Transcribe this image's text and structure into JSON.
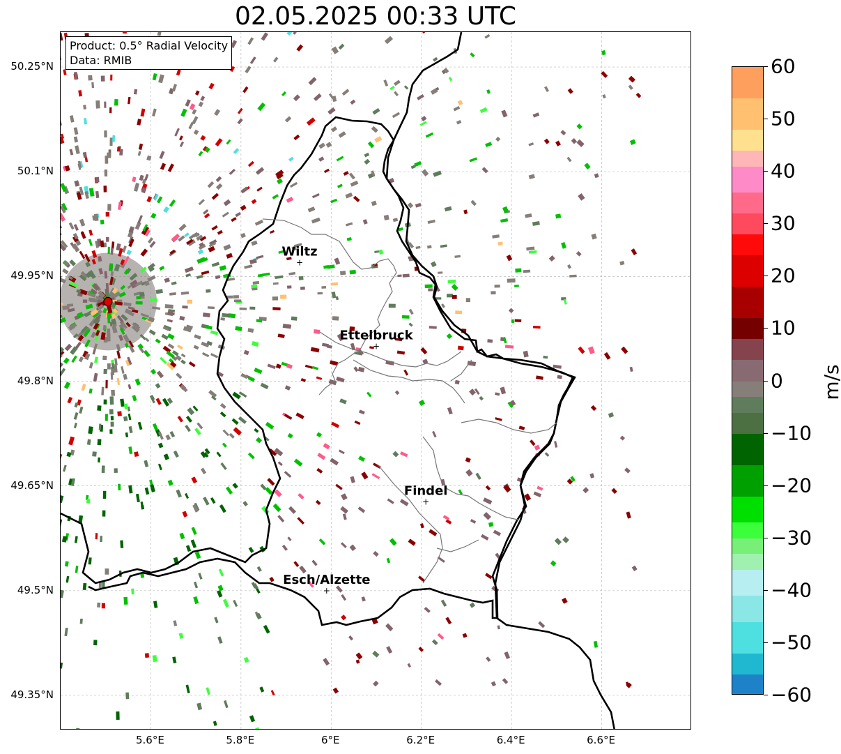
{
  "title": "02.05.2025 00:33 UTC",
  "info": {
    "product": "Product: 0.5° Radial Velocity",
    "data_source": "Data: RMIB"
  },
  "lat_ticks": [
    {
      "value": 50.25,
      "label": "50.25°N"
    },
    {
      "value": 50.1,
      "label": "50.1°N"
    },
    {
      "value": 49.95,
      "label": "49.95°N"
    },
    {
      "value": 49.8,
      "label": "49.8°N"
    },
    {
      "value": 49.65,
      "label": "49.65°N"
    },
    {
      "value": 49.5,
      "label": "49.5°N"
    },
    {
      "value": 49.35,
      "label": "49.35°N"
    }
  ],
  "lon_ticks": [
    {
      "value": 5.6,
      "label": "5.6°E"
    },
    {
      "value": 5.8,
      "label": "5.8°E"
    },
    {
      "value": 6.0,
      "label": "6°E"
    },
    {
      "value": 6.2,
      "label": "6.2°E"
    },
    {
      "value": 6.4,
      "label": "6.4°E"
    },
    {
      "value": 6.6,
      "label": "6.6°E"
    }
  ],
  "map_extent": {
    "lon": [
      5.4,
      6.8
    ],
    "lat": [
      49.3,
      50.3
    ]
  },
  "cities": [
    {
      "name": "Wiltz",
      "lon": 5.93,
      "lat": 49.97
    },
    {
      "name": "Ettelbruck",
      "lon": 6.1,
      "lat": 49.85
    },
    {
      "name": "Findel",
      "lon": 6.21,
      "lat": 49.627
    },
    {
      "name": "Esch/Alzette",
      "lon": 5.99,
      "lat": 49.5
    }
  ],
  "radar_site": {
    "lon": 5.505,
    "lat": 49.914,
    "color": "#e00000"
  },
  "colorbar": {
    "unit": "m/s",
    "min": -60,
    "max": 60,
    "tick_labels": [
      "60",
      "50",
      "40",
      "30",
      "20",
      "10",
      "0",
      "−10",
      "−20",
      "−30",
      "−40",
      "−50",
      "−60"
    ],
    "tick_values": [
      60,
      50,
      40,
      30,
      20,
      10,
      0,
      -10,
      -20,
      -30,
      -40,
      -50,
      -60
    ],
    "segments": [
      {
        "from": 54,
        "to": 60,
        "color": "#ff9f5e"
      },
      {
        "from": 48,
        "to": 54,
        "color": "#ffc070"
      },
      {
        "from": 44,
        "to": 48,
        "color": "#ffe08f"
      },
      {
        "from": 41,
        "to": 44,
        "color": "#ffb6b6"
      },
      {
        "from": 36,
        "to": 41,
        "color": "#ff8ac8"
      },
      {
        "from": 32,
        "to": 36,
        "color": "#ff6a8a"
      },
      {
        "from": 28,
        "to": 32,
        "color": "#ff4a5e"
      },
      {
        "from": 24,
        "to": 28,
        "color": "#ff0a0a"
      },
      {
        "from": 18,
        "to": 24,
        "color": "#dd0000"
      },
      {
        "from": 12,
        "to": 18,
        "color": "#a80000"
      },
      {
        "from": 8,
        "to": 12,
        "color": "#740000"
      },
      {
        "from": 4,
        "to": 8,
        "color": "#84434d"
      },
      {
        "from": 0,
        "to": 4,
        "color": "#876a72"
      },
      {
        "from": -3,
        "to": 0,
        "color": "#857e79"
      },
      {
        "from": -6,
        "to": -3,
        "color": "#5f7c5c"
      },
      {
        "from": -10,
        "to": -6,
        "color": "#4c7042"
      },
      {
        "from": -16,
        "to": -10,
        "color": "#006400"
      },
      {
        "from": -22,
        "to": -16,
        "color": "#00a000"
      },
      {
        "from": -27,
        "to": -22,
        "color": "#00e000"
      },
      {
        "from": -30,
        "to": -27,
        "color": "#3cff3c"
      },
      {
        "from": -33,
        "to": -30,
        "color": "#78f078"
      },
      {
        "from": -36,
        "to": -33,
        "color": "#a0f0b0"
      },
      {
        "from": -41,
        "to": -36,
        "color": "#b6eef2"
      },
      {
        "from": -46,
        "to": -41,
        "color": "#8be6e6"
      },
      {
        "from": -52,
        "to": -46,
        "color": "#4ee0e0"
      },
      {
        "from": -56,
        "to": -52,
        "color": "#20b8d0"
      },
      {
        "from": -60,
        "to": -56,
        "color": "#1e82c8"
      }
    ]
  },
  "palette": {
    "neutral_a": "#857e79",
    "neutral_b": "#84646b",
    "neutral_c": "#5f7c5c",
    "dark_green": "#006400",
    "green": "#00c000",
    "bright_green": "#3cff3c",
    "dark_red": "#8b0000",
    "red": "#d00000",
    "pink": "#ff5a8a",
    "orange": "#ffc070",
    "cyan": "#4ee0e0",
    "blue": "#1e82c8"
  }
}
